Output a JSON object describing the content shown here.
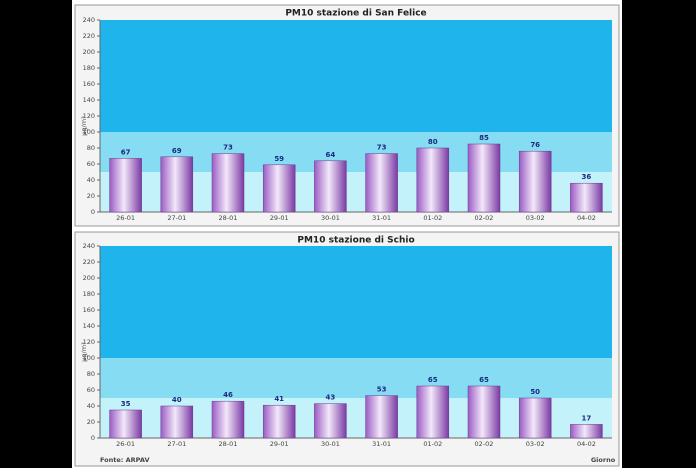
{
  "chart_data": [
    {
      "type": "bar",
      "title": "PM10 stazione di San Felice",
      "ylabel": "µg/m³",
      "categories": [
        "26-01",
        "27-01",
        "28-01",
        "29-01",
        "30-01",
        "31-01",
        "01-02",
        "02-02",
        "03-02",
        "04-02"
      ],
      "values": [
        67,
        69,
        73,
        59,
        64,
        73,
        80,
        85,
        76,
        36
      ],
      "ylim": [
        0,
        240
      ],
      "yticks": [
        0,
        20,
        40,
        60,
        80,
        100,
        120,
        140,
        160,
        180,
        200,
        220,
        240
      ],
      "thresholds": [
        50,
        100
      ]
    },
    {
      "type": "bar",
      "title": "PM10 stazione di Schio",
      "ylabel": "µg/m³",
      "categories": [
        "26-01",
        "27-01",
        "28-01",
        "29-01",
        "30-01",
        "31-01",
        "01-02",
        "02-02",
        "03-02",
        "04-02"
      ],
      "values": [
        35,
        40,
        46,
        41,
        43,
        53,
        65,
        65,
        50,
        17
      ],
      "ylim": [
        0,
        240
      ],
      "yticks": [
        0,
        20,
        40,
        60,
        80,
        100,
        120,
        140,
        160,
        180,
        200,
        220,
        240
      ],
      "thresholds": [
        50,
        100
      ],
      "xlabel": "Giorno",
      "source": "Fonte: ARPAV"
    }
  ]
}
